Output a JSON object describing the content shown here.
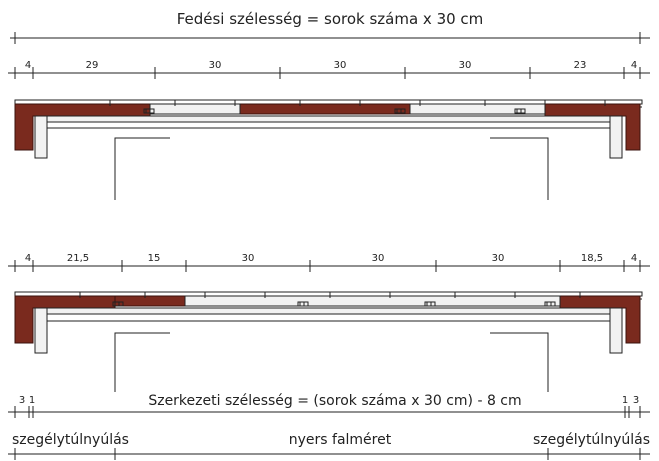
{
  "top_title": "Fedési szélesség = sorok száma x 30 cm",
  "row1_dims": [
    "4",
    "29",
    "30",
    "30",
    "30",
    "23",
    "4"
  ],
  "row2_dims": [
    "4",
    "21,5",
    "15",
    "30",
    "30",
    "30",
    "18,5",
    "4"
  ],
  "bottom_title": "Szerkezeti szélesség = (sorok száma x 30 cm) - 8 cm",
  "bottom_left_dims": [
    "3",
    "1"
  ],
  "bottom_right_dims": [
    "1",
    "3"
  ],
  "bottom_labels": {
    "left": "szegélytúlnyúlás",
    "center": "nyers falméret",
    "right": "szegélytúlnyúlás"
  },
  "colors": {
    "tile": "#7a2a1e",
    "line": "#222222"
  }
}
